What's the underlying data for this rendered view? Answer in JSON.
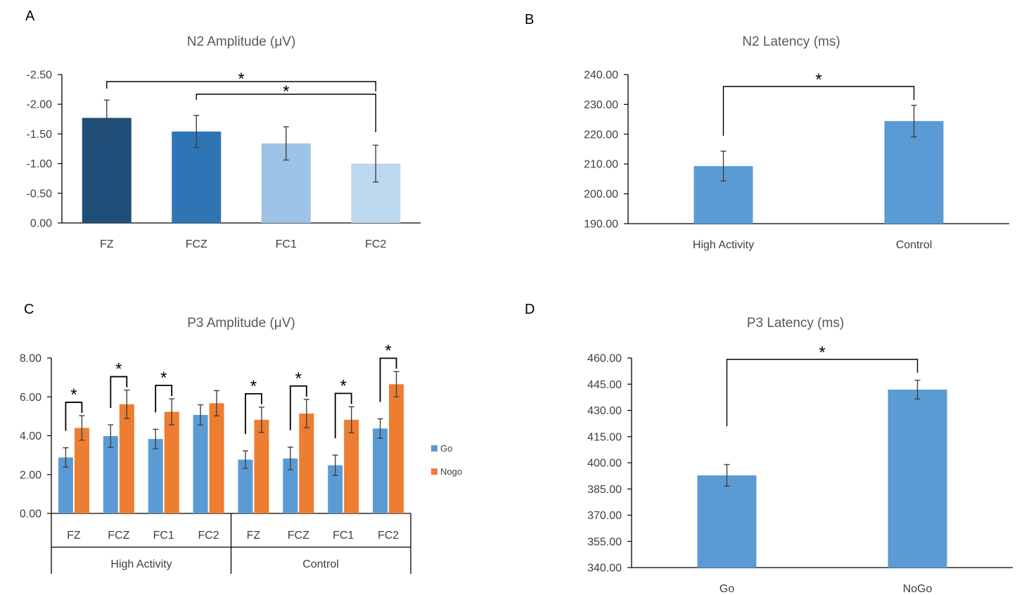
{
  "colors": {
    "fz_dark": "#1f4e79",
    "fcz_mid": "#2e75b6",
    "fc1_light": "#9dc3e6",
    "fc2_lighter": "#bdd7ee",
    "go_blue": "#5b9bd5",
    "nogo_orange": "#ed7d31",
    "axis": "#000000",
    "error_bar": "#404040"
  },
  "chart_data": [
    {
      "panel": "A",
      "type": "bar",
      "title": "N2 Amplitude (μV)",
      "categories": [
        "FZ",
        "FCZ",
        "FC1",
        "FC2"
      ],
      "values": [
        -1.77,
        -1.54,
        -1.34,
        -1.0
      ],
      "errors": [
        0.3,
        0.27,
        0.28,
        0.31
      ],
      "bar_colors": [
        "#1f4e79",
        "#2e75b6",
        "#9dc3e6",
        "#bdd7ee"
      ],
      "ylim": [
        0,
        -2.5
      ],
      "yticks": [
        "-2.50",
        "-2.00",
        "-1.50",
        "-1.00",
        "-0.50",
        "0.00"
      ],
      "ytick_values": [
        -2.5,
        -2.0,
        -1.5,
        -1.0,
        -0.5,
        0.0
      ],
      "inverted_y": true,
      "significance": [
        {
          "from": "FZ",
          "to": "FC2",
          "label": "*"
        },
        {
          "from": "FCZ",
          "to": "FC2",
          "label": "*"
        }
      ]
    },
    {
      "panel": "B",
      "type": "bar",
      "title": "N2 Latency (ms)",
      "categories": [
        "High Activity",
        "Control"
      ],
      "values": [
        209.3,
        224.4
      ],
      "errors": [
        5.0,
        5.3
      ],
      "ylim": [
        190,
        240
      ],
      "yticks": [
        "240.00",
        "230.00",
        "220.00",
        "210.00",
        "200.00",
        "190.00"
      ],
      "ytick_values": [
        240,
        230,
        220,
        210,
        200,
        190
      ],
      "significance": [
        {
          "from": "High Activity",
          "to": "Control",
          "label": "*"
        }
      ]
    },
    {
      "panel": "C",
      "type": "bar",
      "title": "P3 Amplitude (μV)",
      "categories": [
        "FZ",
        "FCZ",
        "FC1",
        "FC2",
        "FZ",
        "FCZ",
        "FC1",
        "FC2"
      ],
      "groups": [
        "High Activity",
        "Control"
      ],
      "series": [
        {
          "name": "Go",
          "values": [
            2.88,
            3.98,
            3.83,
            5.07,
            2.77,
            2.83,
            2.48,
            4.37
          ],
          "errors": [
            0.5,
            0.58,
            0.5,
            0.52,
            0.45,
            0.58,
            0.52,
            0.5
          ]
        },
        {
          "name": "Nogo",
          "values": [
            4.4,
            5.62,
            5.23,
            5.67,
            4.82,
            5.14,
            4.82,
            6.65
          ],
          "errors": [
            0.63,
            0.73,
            0.67,
            0.65,
            0.65,
            0.73,
            0.67,
            0.65
          ]
        }
      ],
      "ylim": [
        0,
        8
      ],
      "yticks": [
        "8.00",
        "6.00",
        "4.00",
        "2.00",
        "0.00"
      ],
      "ytick_values": [
        8,
        6,
        4,
        2,
        0
      ],
      "legend_position": "right",
      "significance_indices": [
        0,
        1,
        2,
        4,
        5,
        6,
        7
      ],
      "significance_label": "*"
    },
    {
      "panel": "D",
      "type": "bar",
      "title": "P3 Latency (ms)",
      "categories": [
        "Go",
        "NoGo"
      ],
      "values": [
        392.8,
        441.9
      ],
      "errors": [
        6.2,
        5.4
      ],
      "ylim": [
        340,
        460
      ],
      "yticks": [
        "460.00",
        "445.00",
        "430.00",
        "415.00",
        "400.00",
        "385.00",
        "370.00",
        "355.00",
        "340.00"
      ],
      "ytick_values": [
        460,
        445,
        430,
        415,
        400,
        385,
        370,
        355,
        340
      ],
      "significance": [
        {
          "from": "Go",
          "to": "NoGo",
          "label": "*"
        }
      ]
    }
  ]
}
